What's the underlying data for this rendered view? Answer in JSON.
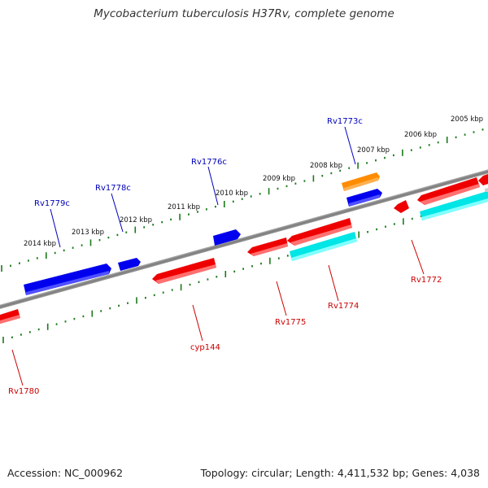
{
  "title": "Mycobacterium tuberculosis H37Rv, complete genome",
  "accession": "Accession: NC_000962",
  "summary": "Topology: circular; Length: 4,411,532 bp; Genes: 4,038",
  "colors": {
    "forward_gene": "#0000ee",
    "reverse_gene": "#ee0000",
    "highlight_orange": "#ff8c00",
    "cds_cyan": "#00e5e5",
    "backbone": "#808080",
    "tick": "#1a7a1a",
    "top_label": "#0000bb",
    "bottom_label": "#cc0000"
  },
  "kbp_labels": [
    "2005 kbp",
    "2006 kbp",
    "2007 kbp",
    "2008 kbp",
    "2009 kbp",
    "2010 kbp",
    "2011 kbp",
    "2012 kbp",
    "2013 kbp",
    "2014 kbp"
  ],
  "top_gene_labels": [
    "Rv1773c",
    "Rv1776c",
    "Rv1778c",
    "Rv1779c"
  ],
  "bottom_gene_labels": [
    "Rv1772",
    "Rv1774",
    "Rv1775",
    "cyp144",
    "Rv1780"
  ]
}
